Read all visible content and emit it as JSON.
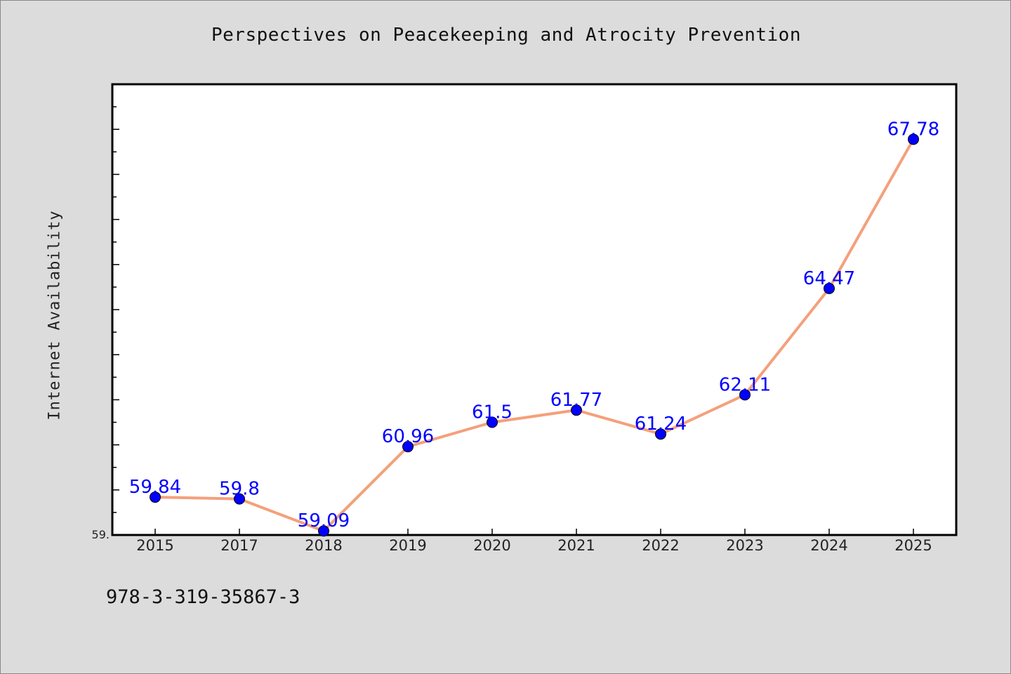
{
  "title": "Perspectives on Peacekeeping and Atrocity Prevention",
  "footer_code": "978-3-319-35867-3",
  "y_min_label": "59.",
  "chart_data": {
    "type": "line",
    "title": "Perspectives on Peacekeeping and Atrocity Prevention",
    "xlabel": "",
    "ylabel": "Internet Availability",
    "categories": [
      "2015",
      "2017",
      "2018",
      "2019",
      "2020",
      "2021",
      "2022",
      "2023",
      "2024",
      "2025"
    ],
    "values": [
      59.84,
      59.8,
      59.09,
      60.96,
      61.5,
      61.77,
      61.24,
      62.11,
      64.47,
      67.78
    ],
    "value_labels": [
      "59.84",
      "59.8",
      "59.09",
      "60.96",
      "61.5",
      "61.77",
      "61.24",
      "62.11",
      "64.47",
      "67.78"
    ],
    "ylim": [
      59.0,
      69.0
    ],
    "grid": false,
    "line_color": "#f4a07c",
    "marker_color": "#0000ff",
    "label_color": "#0000ff",
    "plot_background": "#ffffff",
    "page_background": "#dcdcdc"
  }
}
